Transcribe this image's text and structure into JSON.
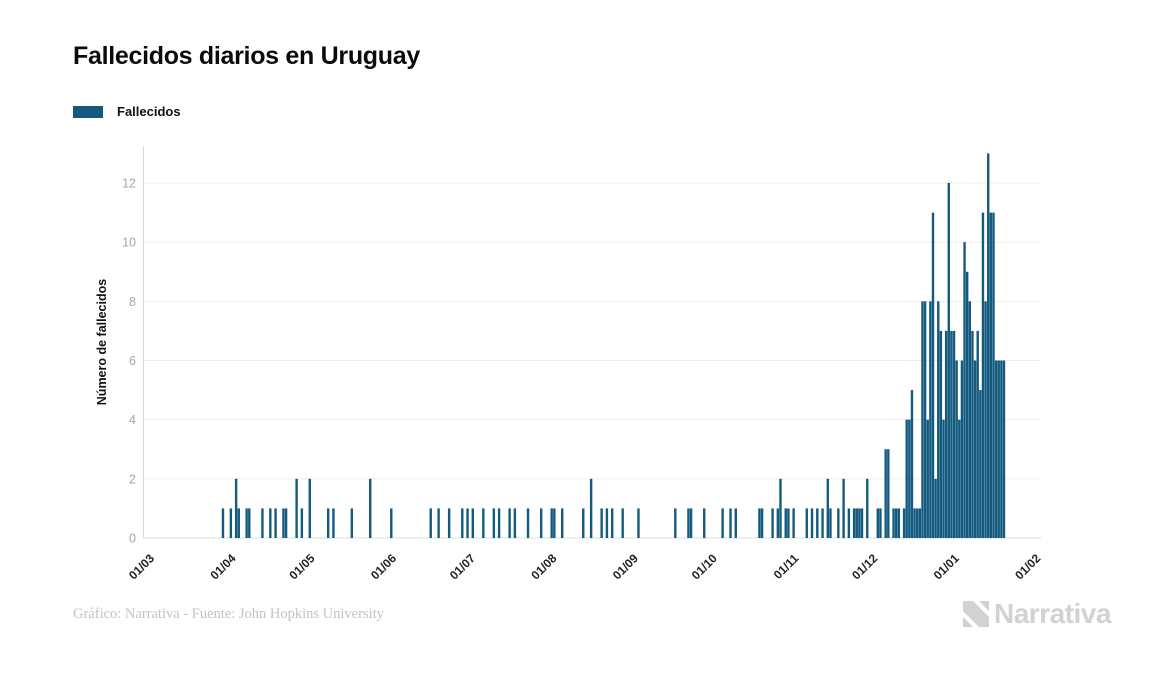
{
  "header": {
    "title": "Fallecidos diarios en Uruguay"
  },
  "legend": {
    "label": "Fallecidos",
    "swatch_color": "#145a7f"
  },
  "footer": {
    "caption": "Gráfico: Narrativa - Fuente: John Hopkins University"
  },
  "brand": {
    "name": "Narrativa",
    "color": "#d2d2d2"
  },
  "colors": {
    "bar": "#145a7f",
    "grid": "#ededed",
    "baseline": "#dcdcdc",
    "axis_line": "#d9d9d9",
    "y_tick_text": "#a6a6a6",
    "x_tick_text": "#222222",
    "y_title_text": "#111111"
  },
  "chart_data": {
    "type": "bar",
    "title": "Fallecidos diarios en Uruguay",
    "series_name": "Fallecidos",
    "xlabel": "",
    "ylabel": "Número de fallecidos",
    "ylim": [
      0,
      13
    ],
    "yticks": [
      0,
      2,
      4,
      6,
      8,
      10,
      12
    ],
    "grid": true,
    "legend_position": "top-left",
    "x_unit": "day offset from first axis tick (01/03 = day 0)",
    "x_ticks": [
      {
        "label": "01/03",
        "day": 0
      },
      {
        "label": "01/04",
        "day": 31
      },
      {
        "label": "01/05",
        "day": 61
      },
      {
        "label": "01/06",
        "day": 92
      },
      {
        "label": "01/07",
        "day": 122
      },
      {
        "label": "01/08",
        "day": 153
      },
      {
        "label": "01/09",
        "day": 184
      },
      {
        "label": "01/10",
        "day": 214
      },
      {
        "label": "01/11",
        "day": 245
      },
      {
        "label": "01/12",
        "day": 275
      },
      {
        "label": "01/01",
        "day": 306
      },
      {
        "label": "01/02",
        "day": 337
      }
    ],
    "points": [
      [
        28,
        1
      ],
      [
        31,
        1
      ],
      [
        33,
        2
      ],
      [
        34,
        1
      ],
      [
        37,
        1
      ],
      [
        38,
        1
      ],
      [
        43,
        1
      ],
      [
        46,
        1
      ],
      [
        48,
        1
      ],
      [
        51,
        1
      ],
      [
        52,
        1
      ],
      [
        56,
        2
      ],
      [
        58,
        1
      ],
      [
        61,
        2
      ],
      [
        68,
        1
      ],
      [
        70,
        1
      ],
      [
        77,
        1
      ],
      [
        84,
        2
      ],
      [
        92,
        1
      ],
      [
        107,
        1
      ],
      [
        110,
        1
      ],
      [
        114,
        1
      ],
      [
        119,
        1
      ],
      [
        121,
        1
      ],
      [
        123,
        1
      ],
      [
        127,
        1
      ],
      [
        131,
        1
      ],
      [
        133,
        1
      ],
      [
        137,
        1
      ],
      [
        139,
        1
      ],
      [
        144,
        1
      ],
      [
        149,
        1
      ],
      [
        153,
        1
      ],
      [
        154,
        1
      ],
      [
        157,
        1
      ],
      [
        165,
        1
      ],
      [
        168,
        2
      ],
      [
        172,
        1
      ],
      [
        174,
        1
      ],
      [
        176,
        1
      ],
      [
        180,
        1
      ],
      [
        186,
        1
      ],
      [
        200,
        1
      ],
      [
        205,
        1
      ],
      [
        206,
        1
      ],
      [
        211,
        1
      ],
      [
        218,
        1
      ],
      [
        221,
        1
      ],
      [
        223,
        1
      ],
      [
        232,
        1
      ],
      [
        233,
        1
      ],
      [
        237,
        1
      ],
      [
        239,
        1
      ],
      [
        240,
        2
      ],
      [
        242,
        1
      ],
      [
        243,
        1
      ],
      [
        245,
        1
      ],
      [
        250,
        1
      ],
      [
        252,
        1
      ],
      [
        254,
        1
      ],
      [
        256,
        1
      ],
      [
        258,
        2
      ],
      [
        259,
        1
      ],
      [
        262,
        1
      ],
      [
        264,
        2
      ],
      [
        266,
        1
      ],
      [
        268,
        1
      ],
      [
        269,
        1
      ],
      [
        270,
        1
      ],
      [
        271,
        1
      ],
      [
        273,
        2
      ],
      [
        277,
        1
      ],
      [
        278,
        1
      ],
      [
        280,
        3
      ],
      [
        281,
        3
      ],
      [
        283,
        1
      ],
      [
        284,
        1
      ],
      [
        285,
        1
      ],
      [
        287,
        1
      ],
      [
        288,
        4
      ],
      [
        289,
        4
      ],
      [
        290,
        5
      ],
      [
        291,
        1
      ],
      [
        292,
        1
      ],
      [
        293,
        1
      ],
      [
        294,
        8
      ],
      [
        295,
        8
      ],
      [
        296,
        4
      ],
      [
        297,
        8
      ],
      [
        298,
        11
      ],
      [
        299,
        2
      ],
      [
        300,
        8
      ],
      [
        301,
        7
      ],
      [
        302,
        4
      ],
      [
        303,
        7
      ],
      [
        304,
        12
      ],
      [
        305,
        7
      ],
      [
        306,
        7
      ],
      [
        307,
        6
      ],
      [
        308,
        4
      ],
      [
        309,
        6
      ],
      [
        310,
        10
      ],
      [
        311,
        9
      ],
      [
        312,
        8
      ],
      [
        313,
        7
      ],
      [
        314,
        6
      ],
      [
        315,
        7
      ],
      [
        316,
        5
      ],
      [
        317,
        11
      ],
      [
        318,
        8
      ],
      [
        319,
        13
      ],
      [
        320,
        11
      ],
      [
        321,
        11
      ],
      [
        322,
        6
      ],
      [
        323,
        6
      ],
      [
        324,
        6
      ],
      [
        325,
        6
      ]
    ]
  }
}
